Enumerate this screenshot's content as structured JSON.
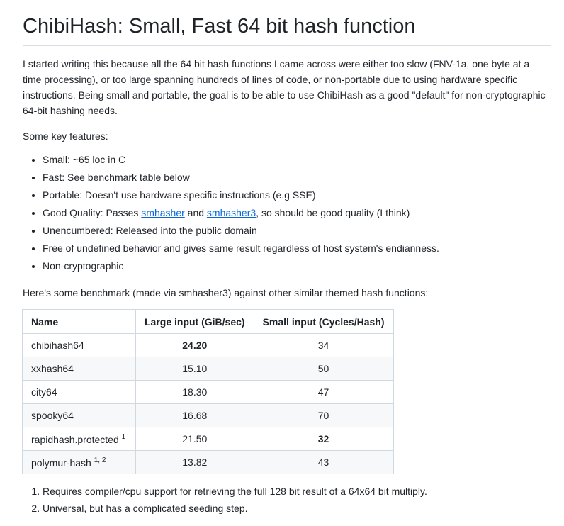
{
  "title": "ChibiHash: Small, Fast 64 bit hash function",
  "intro": "I started writing this because all the 64 bit hash functions I came across were either too slow (FNV-1a, one byte at a time processing), or too large spanning hundreds of lines of code, or non-portable due to using hardware specific instructions. Being small and portable, the goal is to be able to use ChibiHash as a good \"default\" for non-cryptographic 64-bit hashing needs.",
  "features_heading": "Some key features:",
  "features": [
    "Small: ~65 loc in C",
    "Fast: See benchmark table below",
    "Portable: Doesn't use hardware specific instructions (e.g SSE)",
    {
      "pre": "Good Quality: Passes ",
      "link1": "smhasher",
      "mid": " and ",
      "link2": "smhasher3",
      "post": ", so should be good quality (I think)"
    },
    "Unencumbered: Released into the public domain",
    "Free of undefined behavior and gives same result regardless of host system's endianness.",
    "Non-cryptographic"
  ],
  "benchmark_intro": "Here's some benchmark (made via smhasher3) against other similar themed hash functions:",
  "table": {
    "headers": [
      "Name",
      "Large input (GiB/sec)",
      "Small input (Cycles/Hash)"
    ],
    "rows": [
      {
        "name": "chibihash64",
        "sup": "",
        "large": "24.20",
        "small": "34"
      },
      {
        "name": "xxhash64",
        "sup": "",
        "large": "15.10",
        "small": "50"
      },
      {
        "name": "city64",
        "sup": "",
        "large": "18.30",
        "small": "47"
      },
      {
        "name": "spooky64",
        "sup": "",
        "large": "16.68",
        "small": "70"
      },
      {
        "name": "rapidhash.protected",
        "sup": "1",
        "large": "21.50",
        "small": "32"
      },
      {
        "name": "polymur-hash",
        "sup": "1, 2",
        "large": "13.82",
        "small": "43"
      }
    ]
  },
  "footnotes": [
    "Requires compiler/cpu support for retrieving the full 128 bit result of a 64x64 bit multiply.",
    "Universal, but has a complicated seeding step."
  ],
  "colors": {
    "link": "#0969da",
    "border": "#d1d9e0",
    "alt_row": "#f6f8fa"
  }
}
